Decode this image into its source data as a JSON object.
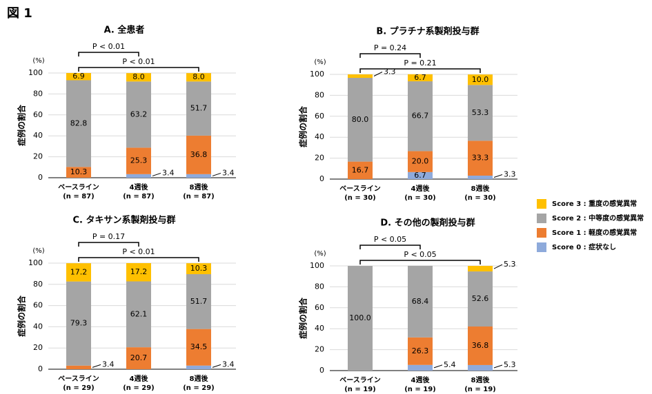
{
  "figure_title": "図 1",
  "legend": [
    "Score 3 : 重度の感覚異常",
    "Score 2 : 中等度の感覚異常",
    "Score 1 : 軽度の感覚異常",
    "Score 0 : 症状なし"
  ],
  "chart_data": [
    {
      "type": "bar",
      "stacked": true,
      "title": "A.  全患者",
      "ylabel": "症例の割合",
      "yunit": "(%)",
      "grid": true,
      "categories": [
        "ベースライン",
        "4週後",
        "8週後"
      ],
      "category_n": [
        "(n = 87)",
        "(n = 87)",
        "(n = 87)"
      ],
      "ylim": [
        0,
        100
      ],
      "yticks": [
        0,
        20,
        40,
        60,
        80,
        100
      ],
      "comparisons": [
        "P < 0.01",
        "P < 0.01"
      ],
      "series": [
        {
          "color": "#8eaadb",
          "values": [
            0,
            3.4,
            3.4
          ],
          "value_labels": [
            null,
            "3.4",
            "3.4"
          ]
        },
        {
          "color": "#ed7d31",
          "values": [
            10.3,
            25.3,
            36.8
          ],
          "value_labels": [
            "10.3",
            "25.3",
            "36.8"
          ]
        },
        {
          "color": "#a5a5a5",
          "values": [
            82.8,
            63.2,
            51.7
          ],
          "value_labels": [
            "82.8",
            "63.2",
            "51.7"
          ]
        },
        {
          "color": "#ffc000",
          "values": [
            6.9,
            8,
            8
          ],
          "value_labels": [
            "6.9",
            "8.0",
            "8.0"
          ]
        }
      ]
    },
    {
      "type": "bar",
      "stacked": true,
      "title": "B.  プラチナ系製剤投与群",
      "ylabel": "症例の割合",
      "yunit": "(%)",
      "grid": true,
      "categories": [
        "ベースライン",
        "4週後",
        "8週後"
      ],
      "category_n": [
        "(n = 30)",
        "(n = 30)",
        "(n = 30)"
      ],
      "ylim": [
        0,
        100
      ],
      "yticks": [
        0,
        20,
        40,
        60,
        80,
        100
      ],
      "comparisons": [
        "P = 0.24",
        "P = 0.21"
      ],
      "series": [
        {
          "color": "#8eaadb",
          "values": [
            0,
            6.7,
            3.3
          ],
          "value_labels": [
            null,
            "6.7",
            "3.3"
          ]
        },
        {
          "color": "#ed7d31",
          "values": [
            16.7,
            20,
            33.3
          ],
          "value_labels": [
            "16.7",
            "20.0",
            "33.3"
          ]
        },
        {
          "color": "#a5a5a5",
          "values": [
            80,
            66.7,
            53.3
          ],
          "value_labels": [
            "80.0",
            "66.7",
            "53.3"
          ]
        },
        {
          "color": "#ffc000",
          "values": [
            3.3,
            6.7,
            10
          ],
          "value_labels": [
            "3.3",
            "6.7",
            "10.0"
          ]
        }
      ]
    },
    {
      "type": "bar",
      "stacked": true,
      "title": "C.  タキサン系製剤投与群",
      "ylabel": "症例の割合",
      "yunit": "(%)",
      "grid": true,
      "categories": [
        "ベースライン",
        "4週後",
        "8週後"
      ],
      "category_n": [
        "(n = 29)",
        "(n = 29)",
        "(n = 29)"
      ],
      "ylim": [
        0,
        100
      ],
      "yticks": [
        0,
        20,
        40,
        60,
        80,
        100
      ],
      "comparisons": [
        "P = 0.17",
        "P < 0.01"
      ],
      "series": [
        {
          "color": "#8eaadb",
          "values": [
            0,
            0,
            3.4
          ],
          "value_labels": [
            null,
            null,
            "3.4"
          ]
        },
        {
          "color": "#ed7d31",
          "values": [
            3.4,
            20.7,
            34.5
          ],
          "value_labels": [
            "3.4",
            "20.7",
            "34.5"
          ]
        },
        {
          "color": "#a5a5a5",
          "values": [
            79.3,
            62.1,
            51.7
          ],
          "value_labels": [
            "79.3",
            "62.1",
            "51.7"
          ]
        },
        {
          "color": "#ffc000",
          "values": [
            17.2,
            17.2,
            10.3
          ],
          "value_labels": [
            "17.2",
            "17.2",
            "10.3"
          ]
        }
      ]
    },
    {
      "type": "bar",
      "stacked": true,
      "title": "D.  その他の製剤投与群",
      "ylabel": "症例の割合",
      "yunit": "(%)",
      "grid": true,
      "categories": [
        "ベースライン",
        "4週後",
        "8週後"
      ],
      "category_n": [
        "(n = 19)",
        "(n = 19)",
        "(n = 19)"
      ],
      "ylim": [
        0,
        100
      ],
      "yticks": [
        0,
        20,
        40,
        60,
        80,
        100
      ],
      "comparisons": [
        "P < 0.05",
        "P < 0.05"
      ],
      "series": [
        {
          "color": "#8eaadb",
          "values": [
            0,
            5.4,
            5.3
          ],
          "value_labels": [
            null,
            "5.4",
            "5.3"
          ]
        },
        {
          "color": "#ed7d31",
          "values": [
            0,
            26.3,
            36.8
          ],
          "value_labels": [
            null,
            "26.3",
            "36.8"
          ]
        },
        {
          "color": "#a5a5a5",
          "values": [
            100,
            68.4,
            52.6
          ],
          "value_labels": [
            "100.0",
            "68.4",
            "52.6"
          ]
        },
        {
          "color": "#ffc000",
          "values": [
            0,
            0,
            5.3
          ],
          "value_labels": [
            null,
            null,
            "5.3"
          ]
        }
      ]
    }
  ]
}
